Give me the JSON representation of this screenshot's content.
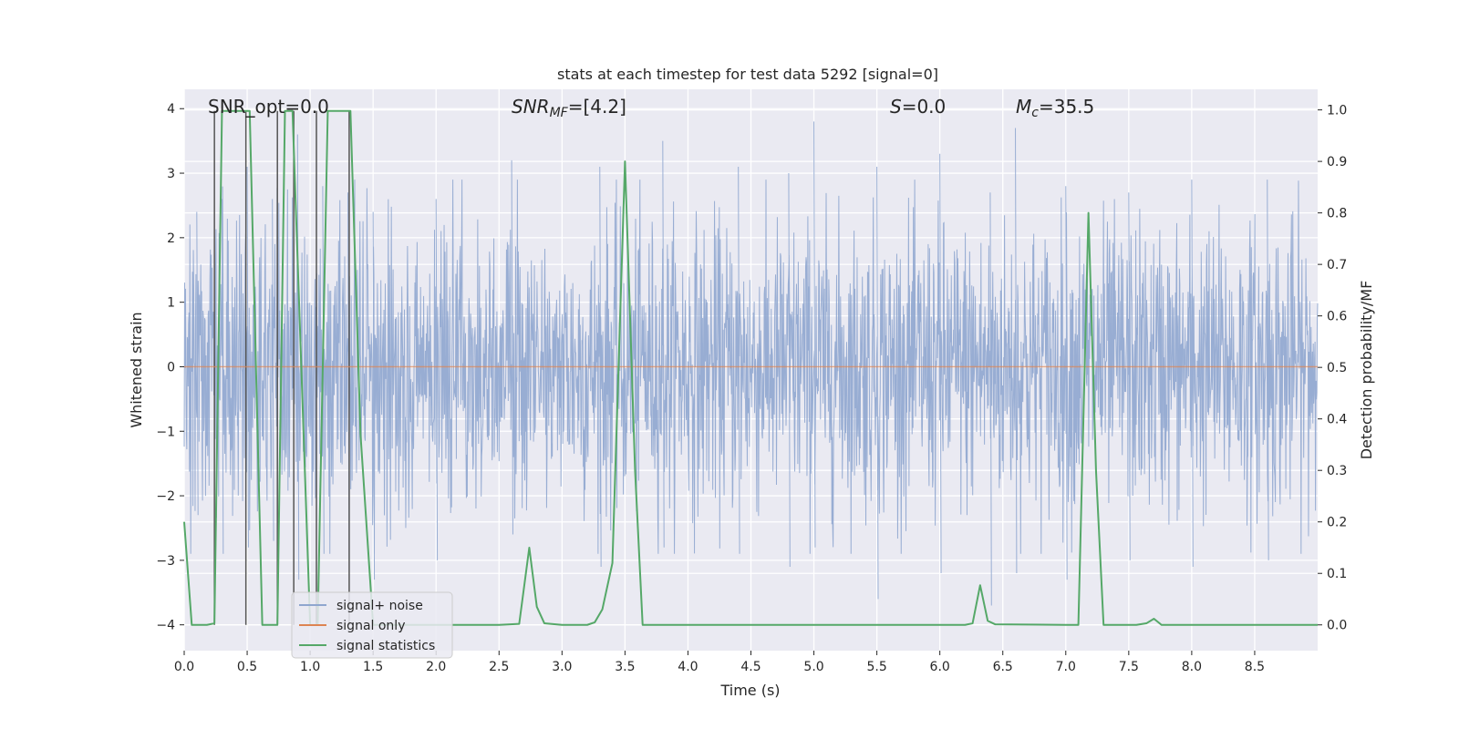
{
  "chart_data": {
    "type": "line",
    "title": "stats at each timestep for test data 5292 [signal=0]",
    "xlabel": "Time (s)",
    "ylabel": "Whitened strain",
    "y2label": "Detection probability/MF",
    "xlim": [
      0.0,
      9.0
    ],
    "ylim": [
      -4.4,
      4.3
    ],
    "y2lim": [
      -0.05,
      1.04
    ],
    "xticks": [
      "0.0",
      "0.5",
      "1.0",
      "1.5",
      "2.0",
      "2.5",
      "3.0",
      "3.5",
      "4.0",
      "4.5",
      "5.0",
      "5.5",
      "6.0",
      "6.5",
      "7.0",
      "7.5",
      "8.0",
      "8.5"
    ],
    "yticks": [
      "4",
      "3",
      "2",
      "1",
      "0",
      "−1",
      "−2",
      "−3",
      "−4"
    ],
    "y2ticks": [
      "1.0",
      "0.9",
      "0.8",
      "0.7",
      "0.6",
      "0.5",
      "0.4",
      "0.3",
      "0.2",
      "0.1",
      "0.0"
    ],
    "grid": true,
    "legend_position": "lower-left",
    "annotations": {
      "snr_opt": "SNR_opt=0.0",
      "snr_mf_main": "SNR",
      "snr_mf_sub": "MF",
      "snr_mf_value": "=[4.2]",
      "s_main": "S",
      "s_value": "=0.0",
      "mc_main": "M",
      "mc_sub": "c",
      "mc_value": "=35.5"
    },
    "colors": {
      "noise": "#8fa6cf",
      "signal": "#dd8452",
      "stats": "#55a868",
      "vlines": "#555555",
      "background": "#eaeaf2",
      "grid": "#ffffff"
    },
    "series": [
      {
        "name": "signal+ noise",
        "kind": "noise",
        "envelope_peaks": [
          [
            0.1,
            2.4,
            -2.3
          ],
          [
            0.3,
            2.6,
            -2.9
          ],
          [
            0.5,
            3.1,
            -2.8
          ],
          [
            0.7,
            2.6,
            -2.7
          ],
          [
            0.9,
            3.6,
            -3.3
          ],
          [
            1.1,
            2.8,
            -2.9
          ],
          [
            1.3,
            2.7,
            -3.0
          ],
          [
            1.5,
            2.4,
            -3.3
          ],
          [
            2.0,
            2.6,
            -3.0
          ],
          [
            2.6,
            3.2,
            -2.6
          ],
          [
            3.3,
            3.1,
            -3.1
          ],
          [
            3.8,
            3.5,
            -2.8
          ],
          [
            4.4,
            3.1,
            -2.9
          ],
          [
            4.8,
            3.0,
            -3.1
          ],
          [
            5.0,
            3.8,
            -2.8
          ],
          [
            5.5,
            3.1,
            -3.6
          ],
          [
            6.0,
            3.3,
            -3.2
          ],
          [
            6.4,
            2.7,
            -3.7
          ],
          [
            6.6,
            3.7,
            -3.2
          ],
          [
            7.0,
            2.8,
            -3.3
          ],
          [
            7.5,
            2.7,
            -3.0
          ],
          [
            8.0,
            2.9,
            -3.1
          ],
          [
            8.6,
            2.9,
            -3.0
          ]
        ]
      },
      {
        "name": "signal only",
        "kind": "signal",
        "x": [
          0.0,
          9.0
        ],
        "y": [
          0.0,
          0.0
        ]
      },
      {
        "name": "signal statistics",
        "kind": "stats",
        "axis": "right",
        "x": [
          0.0,
          0.06,
          0.18,
          0.24,
          0.3,
          0.48,
          0.52,
          0.62,
          0.74,
          0.8,
          0.86,
          1.0,
          1.06,
          1.14,
          1.32,
          1.4,
          1.5,
          1.7,
          2.0,
          2.5,
          2.66,
          2.74,
          2.8,
          2.86,
          3.0,
          3.2,
          3.26,
          3.32,
          3.4,
          3.5,
          3.58,
          3.64,
          3.7,
          4.0,
          5.0,
          6.0,
          6.2,
          6.26,
          6.32,
          6.38,
          6.44,
          7.0,
          7.1,
          7.18,
          7.24,
          7.3,
          7.56,
          7.64,
          7.7,
          7.76,
          8.0,
          9.0
        ],
        "y": [
          0.2,
          0.0,
          0.0,
          0.003,
          0.998,
          0.998,
          0.998,
          0.0,
          0.0,
          0.998,
          0.998,
          0.0,
          0.0,
          0.998,
          0.998,
          0.37,
          0.0,
          0.0,
          0.0,
          0.0,
          0.002,
          0.15,
          0.035,
          0.003,
          0.0,
          0.0,
          0.005,
          0.03,
          0.12,
          0.9,
          0.3,
          0.0,
          0.0,
          0.0,
          0.0,
          0.0,
          0.0,
          0.003,
          0.077,
          0.008,
          0.001,
          0.0,
          0.0,
          0.8,
          0.3,
          0.0,
          0.0,
          0.003,
          0.012,
          0.0,
          0.0,
          0.0
        ]
      }
    ],
    "vlines_x": [
      0.24,
      0.49,
      0.74,
      0.87,
      1.05,
      1.31
    ]
  }
}
